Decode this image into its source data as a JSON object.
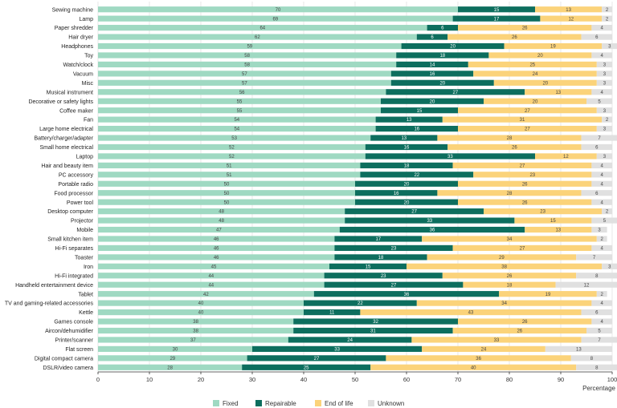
{
  "colors": {
    "fixed": "#9fd9c2",
    "repairable": "#0d6e5e",
    "end_of_life": "#fbd37a",
    "unknown": "#e0e0e0",
    "grid": "#d8d8d8",
    "axis": "#333333",
    "label_dark": "#444444",
    "label_light": "#ffffff"
  },
  "chart_data": {
    "type": "bar",
    "orientation": "horizontal",
    "stacked": true,
    "xlabel": "Percentage",
    "xlim": [
      0,
      100
    ],
    "xticks": [
      0,
      10,
      20,
      30,
      40,
      50,
      60,
      70,
      80,
      90,
      100
    ],
    "grid": true,
    "legend_position": "bottom",
    "categories": [
      "Sewing machine",
      "Lamp",
      "Paper shredder",
      "Hair dryer",
      "Headphones",
      "Toy",
      "Watch/clock",
      "Vacuum",
      "Misc",
      "Musical instrument",
      "Decorative or safety lights",
      "Coffee maker",
      "Fan",
      "Large home electrical",
      "Battery/charger/adapter",
      "Small home electrical",
      "Laptop",
      "Hair and beauty item",
      "PC accessory",
      "Portable radio",
      "Food processor",
      "Power tool",
      "Desktop computer",
      "Projector",
      "Mobile",
      "Small kitchen item",
      "Hi-Fi separates",
      "Toaster",
      "Iron",
      "Hi-Fi integrated",
      "Handheld entertainment device",
      "Tablet",
      "TV and gaming-related accessories",
      "Kettle",
      "Games console",
      "Aircon/dehumidifier",
      "Printer/scanner",
      "Flat screen",
      "Digital compact camera",
      "DSLR/video camera"
    ],
    "series": [
      {
        "name": "Fixed",
        "key": "fixed",
        "values": [
          70,
          69,
          64,
          62,
          59,
          58,
          58,
          57,
          57,
          56,
          55,
          55,
          54,
          54,
          53,
          52,
          52,
          51,
          51,
          50,
          50,
          50,
          48,
          48,
          47,
          46,
          46,
          46,
          45,
          44,
          44,
          42,
          40,
          40,
          38,
          38,
          37,
          30,
          29,
          28
        ]
      },
      {
        "name": "Repairable",
        "key": "repairable",
        "values": [
          15,
          17,
          6,
          6,
          20,
          18,
          14,
          16,
          20,
          27,
          20,
          15,
          13,
          16,
          13,
          16,
          33,
          18,
          22,
          20,
          16,
          20,
          27,
          33,
          36,
          17,
          23,
          18,
          15,
          23,
          27,
          36,
          22,
          11,
          32,
          31,
          24,
          33,
          27,
          25
        ]
      },
      {
        "name": "End of life",
        "key": "end_of_life",
        "values": [
          13,
          12,
          26,
          26,
          19,
          20,
          25,
          24,
          20,
          13,
          20,
          27,
          31,
          27,
          28,
          26,
          12,
          27,
          23,
          26,
          28,
          26,
          23,
          15,
          13,
          34,
          27,
          29,
          38,
          26,
          18,
          19,
          34,
          43,
          26,
          26,
          33,
          24,
          36,
          40
        ]
      },
      {
        "name": "Unknown",
        "key": "unknown",
        "values": [
          2,
          2,
          4,
          6,
          3,
          4,
          3,
          3,
          3,
          4,
          5,
          3,
          2,
          3,
          7,
          6,
          3,
          4,
          4,
          4,
          6,
          4,
          2,
          5,
          3,
          2,
          4,
          7,
          3,
          8,
          12,
          2,
          4,
          6,
          4,
          5,
          7,
          13,
          8,
          8
        ]
      }
    ]
  }
}
